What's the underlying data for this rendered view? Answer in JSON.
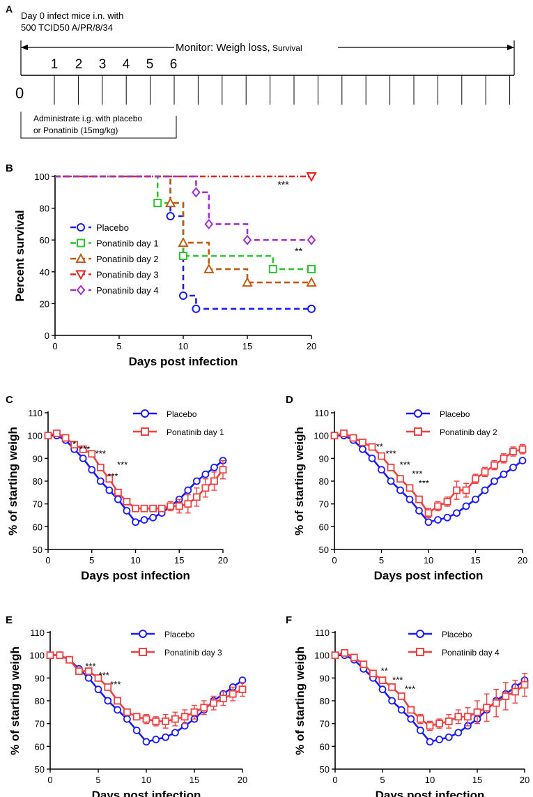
{
  "panel_a": {
    "panel_label": "A",
    "infect_line1": "Day 0 infect mice i.n. with",
    "infect_line2": "500 TCID50 A/PR/8/34",
    "monitor_main": "Monitor: Weigh loss,",
    "monitor_small": " Survival",
    "day_labels": [
      "1",
      "2",
      "3",
      "4",
      "5",
      "6"
    ],
    "zero_label": "0",
    "admin_line1": "Administrate i.g. with placebo",
    "admin_line2": "or Ponatinib (15mg/kg)",
    "tick_count": 20
  },
  "chart_data": [
    {
      "id": "B",
      "type": "line",
      "step": true,
      "panel_label": "B",
      "title": "",
      "xlabel": "Days post infection",
      "ylabel": "Percent survival",
      "xlim": [
        0,
        20
      ],
      "ylim": [
        0,
        100
      ],
      "xticks": [
        0,
        5,
        10,
        15,
        20
      ],
      "yticks": [
        0,
        20,
        40,
        60,
        80,
        100
      ],
      "legend": "left",
      "series": [
        {
          "name": "Placebo",
          "color": "#1a1aff",
          "marker": "circle",
          "x": [
            0,
            9,
            10,
            11,
            20
          ],
          "y": [
            100,
            75,
            25,
            16.7,
            16.7
          ],
          "marked_x": [
            9,
            10,
            11,
            20
          ]
        },
        {
          "name": "Ponatinib day 1",
          "color": "#2ec42e",
          "marker": "square",
          "x": [
            0,
            8,
            10,
            17,
            20
          ],
          "y": [
            100,
            83.3,
            50,
            41.7,
            41.7
          ],
          "marked_x": [
            8,
            10,
            17,
            20
          ]
        },
        {
          "name": "Ponatinib day 2",
          "color": "#c05a10",
          "marker": "triangle-up",
          "x": [
            0,
            9,
            10,
            12,
            15,
            20
          ],
          "y": [
            100,
            83.3,
            58.3,
            41.7,
            33.3,
            33.3
          ],
          "marked_x": [
            9,
            10,
            12,
            15,
            20
          ]
        },
        {
          "name": "Ponatinib day 3",
          "color": "#e8231e",
          "marker": "triangle-down",
          "x": [
            0,
            20
          ],
          "y": [
            100,
            100
          ],
          "marked_x": [
            20
          ]
        },
        {
          "name": "Ponatinib day 4",
          "color": "#a030d0",
          "marker": "diamond",
          "x": [
            0,
            11,
            12,
            15,
            20
          ],
          "y": [
            100,
            90,
            70,
            60,
            60
          ],
          "marked_x": [
            11,
            12,
            15,
            20
          ]
        }
      ],
      "annotations": [
        {
          "text": "***",
          "x": 17.8,
          "y": 95
        },
        {
          "text": "**",
          "x": 19,
          "y": 53
        }
      ]
    },
    {
      "id": "C",
      "type": "line",
      "panel_label": "C",
      "title": "",
      "xlabel": "Days post infection",
      "ylabel": "% of starting weigh",
      "xlim": [
        0,
        20
      ],
      "ylim": [
        50,
        110
      ],
      "xticks": [
        0,
        5,
        10,
        15,
        20
      ],
      "yticks": [
        50,
        60,
        70,
        80,
        90,
        100,
        110
      ],
      "legend": "top-right",
      "x": [
        0,
        1,
        2,
        3,
        4,
        5,
        6,
        7,
        8,
        9,
        10,
        11,
        12,
        13,
        14,
        15,
        16,
        17,
        18,
        19,
        20
      ],
      "series": [
        {
          "name": "Placebo",
          "color": "#1a1aff",
          "marker": "circle",
          "values": [
            100,
            100,
            98,
            94,
            90,
            85,
            80,
            76,
            72,
            67,
            62,
            63,
            64,
            66,
            69,
            72,
            76,
            80,
            83,
            86,
            89
          ]
        },
        {
          "name": "Ponatinib day 1",
          "color": "#f04040",
          "marker": "square",
          "values": [
            100,
            101,
            99,
            96,
            94,
            92,
            86,
            81,
            75,
            71,
            68,
            68,
            68,
            68,
            69,
            69,
            70,
            73,
            77,
            80,
            85
          ],
          "err": [
            0,
            0,
            0,
            0,
            0,
            0,
            0,
            0,
            0,
            0,
            0,
            0,
            0,
            1,
            2,
            3,
            4,
            4,
            4,
            4,
            4
          ]
        }
      ],
      "annotations": [
        {
          "text": "*",
          "x": 3,
          "y": 96
        },
        {
          "text": "***",
          "x": 4.2,
          "y": 94
        },
        {
          "text": "***",
          "x": 6,
          "y": 92
        },
        {
          "text": "***",
          "x": 8.5,
          "y": 87
        },
        {
          "text": "***",
          "x": 7.4,
          "y": 82
        }
      ]
    },
    {
      "id": "D",
      "type": "line",
      "panel_label": "D",
      "title": "",
      "xlabel": "Days post infection",
      "ylabel": "% of starting weigh",
      "xlim": [
        0,
        20
      ],
      "ylim": [
        50,
        110
      ],
      "xticks": [
        0,
        5,
        10,
        15,
        20
      ],
      "yticks": [
        50,
        60,
        70,
        80,
        90,
        100,
        110
      ],
      "legend": "top-right",
      "x": [
        0,
        1,
        2,
        3,
        4,
        5,
        6,
        7,
        8,
        9,
        10,
        11,
        12,
        13,
        14,
        15,
        16,
        17,
        18,
        19,
        20
      ],
      "series": [
        {
          "name": "Placebo",
          "color": "#1a1aff",
          "marker": "circle",
          "values": [
            100,
            100,
            98,
            94,
            90,
            85,
            80,
            76,
            72,
            67,
            62,
            63,
            64,
            66,
            69,
            72,
            76,
            80,
            83,
            86,
            89
          ]
        },
        {
          "name": "Ponatinib day 2",
          "color": "#f04040",
          "marker": "square",
          "values": [
            100,
            101,
            99,
            97,
            95,
            91,
            86,
            81,
            77,
            72,
            66,
            69,
            71,
            76,
            76,
            81,
            84,
            87,
            90,
            93,
            94
          ],
          "err": [
            0,
            0,
            0,
            0,
            0,
            0,
            0,
            0,
            0,
            0,
            2,
            2,
            2,
            4,
            3,
            2,
            2,
            2,
            2,
            2,
            2
          ]
        }
      ],
      "annotations": [
        {
          "text": "**",
          "x": 4.8,
          "y": 95
        },
        {
          "text": "***",
          "x": 6,
          "y": 92
        },
        {
          "text": "***",
          "x": 7.5,
          "y": 87
        },
        {
          "text": "***",
          "x": 8.8,
          "y": 83
        },
        {
          "text": "***",
          "x": 9.5,
          "y": 79
        }
      ]
    },
    {
      "id": "E",
      "type": "line",
      "panel_label": "E",
      "title": "",
      "xlabel": "Days post infection",
      "ylabel": "% of starting weigh",
      "xlim": [
        0,
        20
      ],
      "ylim": [
        50,
        110
      ],
      "xticks": [
        0,
        5,
        10,
        15,
        20
      ],
      "yticks": [
        50,
        60,
        70,
        80,
        90,
        100,
        110
      ],
      "legend": "top-right",
      "x": [
        0,
        1,
        2,
        3,
        4,
        5,
        6,
        7,
        8,
        9,
        10,
        11,
        12,
        13,
        14,
        15,
        16,
        17,
        18,
        19,
        20
      ],
      "series": [
        {
          "name": "Placebo",
          "color": "#1a1aff",
          "marker": "circle",
          "values": [
            100,
            100,
            98,
            94,
            90,
            85,
            80,
            76,
            72,
            67,
            62,
            63,
            64,
            66,
            69,
            72,
            76,
            80,
            83,
            86,
            89
          ]
        },
        {
          "name": "Ponatinib day 3",
          "color": "#f04040",
          "marker": "square",
          "values": [
            100,
            100,
            98,
            93,
            93,
            90,
            86,
            80,
            75,
            73,
            72,
            71,
            71,
            72,
            73,
            75,
            77,
            79,
            81,
            83,
            85
          ],
          "err": [
            0,
            0,
            0,
            0,
            0,
            0,
            0,
            0,
            0,
            0,
            2,
            2,
            3,
            3,
            3,
            3,
            3,
            3,
            3,
            3,
            3
          ]
        }
      ],
      "annotations": [
        {
          "text": "***",
          "x": 4.2,
          "y": 95
        },
        {
          "text": "***",
          "x": 5.6,
          "y": 91
        },
        {
          "text": "***",
          "x": 6.8,
          "y": 87
        }
      ]
    },
    {
      "id": "F",
      "type": "line",
      "panel_label": "F",
      "title": "",
      "xlabel": "Days post infection",
      "ylabel": "% of starting weigh",
      "xlim": [
        0,
        20
      ],
      "ylim": [
        50,
        110
      ],
      "xticks": [
        0,
        5,
        10,
        15,
        20
      ],
      "yticks": [
        50,
        60,
        70,
        80,
        90,
        100,
        110
      ],
      "legend": "top-right",
      "x": [
        0,
        1,
        2,
        3,
        4,
        5,
        6,
        7,
        8,
        9,
        10,
        11,
        12,
        13,
        14,
        15,
        16,
        17,
        18,
        19,
        20
      ],
      "series": [
        {
          "name": "Placebo",
          "color": "#1a1aff",
          "marker": "circle",
          "values": [
            100,
            100,
            98,
            94,
            90,
            85,
            80,
            76,
            72,
            67,
            62,
            63,
            64,
            66,
            69,
            72,
            76,
            80,
            83,
            86,
            89
          ]
        },
        {
          "name": "Ponatinib day 4",
          "color": "#f04040",
          "marker": "square",
          "values": [
            100,
            101,
            99,
            96,
            92,
            89,
            86,
            82,
            76,
            72,
            69,
            70,
            71,
            73,
            73,
            75,
            77,
            79,
            82,
            84,
            87
          ],
          "err": [
            0,
            0,
            0,
            0,
            0,
            0,
            0,
            0,
            0,
            2,
            2,
            2,
            3,
            3,
            4,
            5,
            6,
            6,
            6,
            5,
            5
          ]
        }
      ],
      "annotations": [
        {
          "text": "**",
          "x": 5.2,
          "y": 93
        },
        {
          "text": "***",
          "x": 6.6,
          "y": 89
        },
        {
          "text": "***",
          "x": 7.9,
          "y": 85
        }
      ]
    }
  ]
}
